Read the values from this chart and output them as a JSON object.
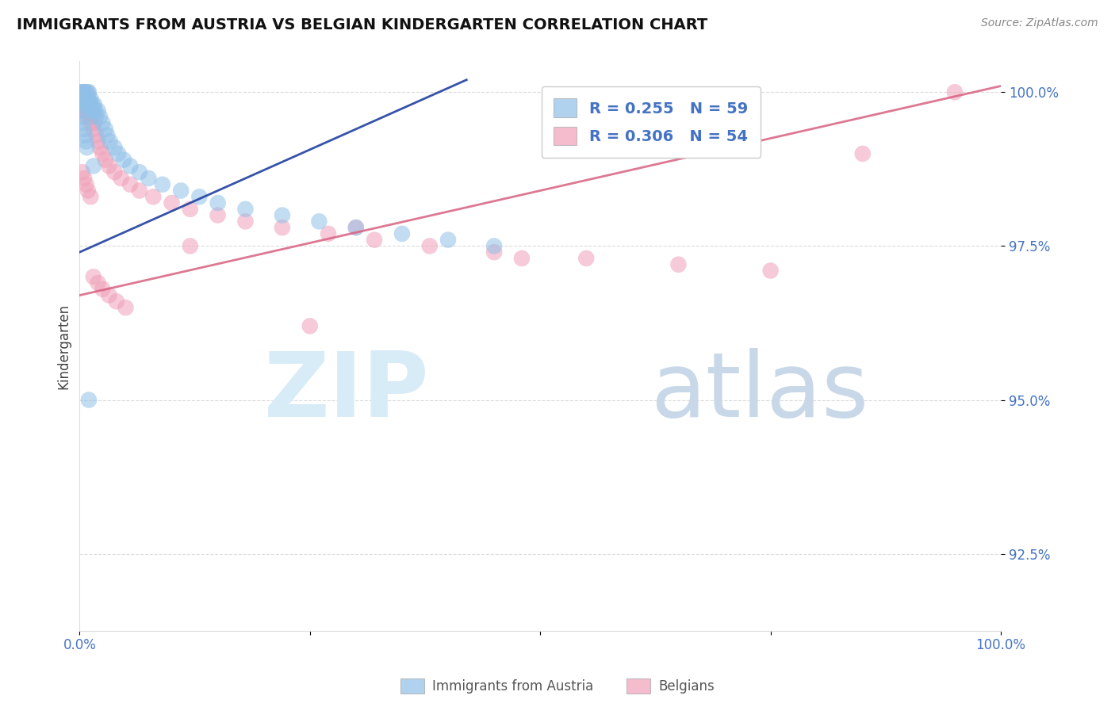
{
  "title": "IMMIGRANTS FROM AUSTRIA VS BELGIAN KINDERGARTEN CORRELATION CHART",
  "source_text": "Source: ZipAtlas.com",
  "ylabel": "Kindergarten",
  "R_blue": 0.255,
  "N_blue": 59,
  "R_pink": 0.306,
  "N_pink": 54,
  "blue_color": "#90C0E8",
  "pink_color": "#F0A0B8",
  "blue_line_color": "#2040A0",
  "pink_line_color": "#D86080",
  "tick_color": "#4472C4",
  "grid_color": "#CCCCCC",
  "watermark_zip": "ZIP",
  "watermark_atlas": "atlas",
  "watermark_color_zip": "#D8ECF8",
  "watermark_color_atlas": "#C8D8E8",
  "legend_label_blue": "Immigrants from Austria",
  "legend_label_pink": "Belgians",
  "xmin": 0.0,
  "xmax": 1.0,
  "ymin": 0.9125,
  "ymax": 1.005,
  "yticks": [
    0.925,
    0.95,
    0.975,
    1.0
  ],
  "ytick_labels": [
    "92.5%",
    "95.0%",
    "97.5%",
    "100.0%"
  ],
  "blue_trend_x": [
    0.0,
    0.42
  ],
  "blue_trend_y": [
    0.974,
    1.002
  ],
  "pink_trend_x": [
    0.0,
    1.0
  ],
  "pink_trend_y": [
    0.967,
    1.001
  ],
  "blue_scatter_x": [
    0.002,
    0.003,
    0.003,
    0.004,
    0.004,
    0.005,
    0.005,
    0.005,
    0.006,
    0.006,
    0.007,
    0.007,
    0.008,
    0.008,
    0.009,
    0.009,
    0.01,
    0.01,
    0.011,
    0.012,
    0.012,
    0.013,
    0.014,
    0.015,
    0.016,
    0.017,
    0.018,
    0.02,
    0.022,
    0.025,
    0.028,
    0.03,
    0.033,
    0.038,
    0.042,
    0.048,
    0.055,
    0.065,
    0.075,
    0.09,
    0.11,
    0.13,
    0.15,
    0.18,
    0.22,
    0.26,
    0.3,
    0.35,
    0.4,
    0.45,
    0.002,
    0.003,
    0.004,
    0.005,
    0.006,
    0.007,
    0.008,
    0.01,
    0.015
  ],
  "blue_scatter_y": [
    1.0,
    0.999,
    1.0,
    0.999,
    1.0,
    0.999,
    1.0,
    0.998,
    0.999,
    1.0,
    0.999,
    1.0,
    0.998,
    0.999,
    1.0,
    0.998,
    0.999,
    1.0,
    0.998,
    0.999,
    0.998,
    0.997,
    0.998,
    0.997,
    0.998,
    0.997,
    0.996,
    0.997,
    0.996,
    0.995,
    0.994,
    0.993,
    0.992,
    0.991,
    0.99,
    0.989,
    0.988,
    0.987,
    0.986,
    0.985,
    0.984,
    0.983,
    0.982,
    0.981,
    0.98,
    0.979,
    0.978,
    0.977,
    0.976,
    0.975,
    0.997,
    0.996,
    0.995,
    0.994,
    0.993,
    0.992,
    0.991,
    0.95,
    0.988
  ],
  "pink_scatter_x": [
    0.002,
    0.003,
    0.004,
    0.005,
    0.006,
    0.007,
    0.008,
    0.009,
    0.01,
    0.011,
    0.012,
    0.013,
    0.015,
    0.016,
    0.018,
    0.02,
    0.022,
    0.025,
    0.028,
    0.032,
    0.038,
    0.045,
    0.055,
    0.065,
    0.08,
    0.1,
    0.12,
    0.15,
    0.18,
    0.22,
    0.27,
    0.32,
    0.38,
    0.45,
    0.55,
    0.65,
    0.75,
    0.85,
    0.95,
    0.003,
    0.005,
    0.007,
    0.009,
    0.012,
    0.015,
    0.02,
    0.025,
    0.032,
    0.04,
    0.05,
    0.12,
    0.25,
    0.3,
    0.48
  ],
  "pink_scatter_y": [
    0.998,
    0.997,
    0.998,
    0.999,
    0.997,
    0.998,
    0.996,
    0.997,
    0.998,
    0.996,
    0.995,
    0.996,
    0.994,
    0.995,
    0.993,
    0.992,
    0.991,
    0.99,
    0.989,
    0.988,
    0.987,
    0.986,
    0.985,
    0.984,
    0.983,
    0.982,
    0.981,
    0.98,
    0.979,
    0.978,
    0.977,
    0.976,
    0.975,
    0.974,
    0.973,
    0.972,
    0.971,
    0.99,
    1.0,
    0.987,
    0.986,
    0.985,
    0.984,
    0.983,
    0.97,
    0.969,
    0.968,
    0.967,
    0.966,
    0.965,
    0.975,
    0.962,
    0.978,
    0.973
  ]
}
